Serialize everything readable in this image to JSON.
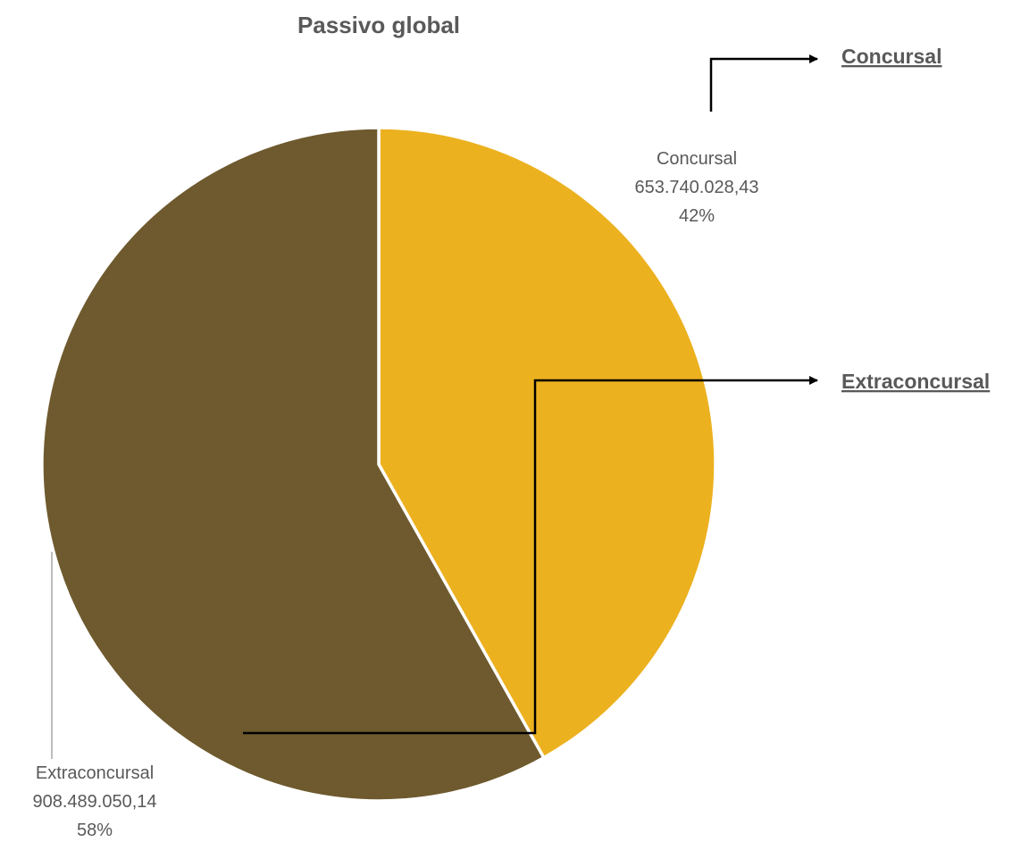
{
  "chart_data": {
    "type": "pie",
    "title": "Passivo global",
    "slices": [
      {
        "label": "Concursal",
        "value": 653740028.43,
        "value_text": "653.740.028,43",
        "percent_text": "42%",
        "color": "#ECB11F"
      },
      {
        "label": "Extraconcursal",
        "value": 908489050.14,
        "value_text": "908.489.050,14",
        "percent_text": "58%",
        "color": "#6E5A2E"
      }
    ],
    "start_angle_deg": 0,
    "direction": "clockwise",
    "slice_border_color": "#ffffff"
  },
  "callouts": [
    {
      "text": "Concursal"
    },
    {
      "text": "Extraconcursal"
    }
  ],
  "colors": {
    "text": "#595959",
    "leader_line": "#A6A6A6",
    "callout_arrow": "#000000"
  }
}
